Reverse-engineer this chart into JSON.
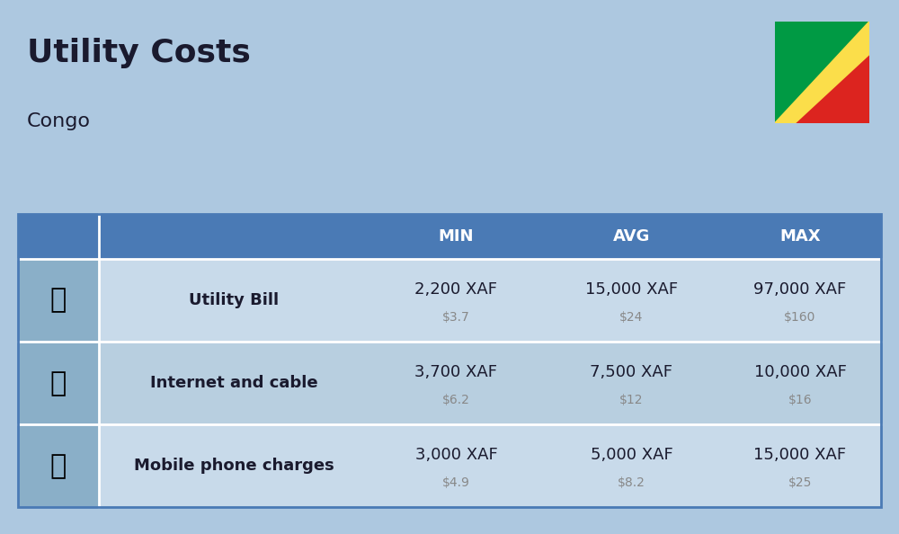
{
  "title": "Utility Costs",
  "subtitle": "Congo",
  "background_color": "#adc8e0",
  "header_bg_color": "#4a7ab5",
  "header_text_color": "#ffffff",
  "row_colors": [
    "#c8daea",
    "#b8cfe0"
  ],
  "icon_col_color": "#8aafc8",
  "rows": [
    {
      "label": "Utility Bill",
      "min_xaf": "2,200 XAF",
      "min_usd": "$3.7",
      "avg_xaf": "15,000 XAF",
      "avg_usd": "$24",
      "max_xaf": "97,000 XAF",
      "max_usd": "$160"
    },
    {
      "label": "Internet and cable",
      "min_xaf": "3,700 XAF",
      "min_usd": "$6.2",
      "avg_xaf": "7,500 XAF",
      "avg_usd": "$12",
      "max_xaf": "10,000 XAF",
      "max_usd": "$16"
    },
    {
      "label": "Mobile phone charges",
      "min_xaf": "3,000 XAF",
      "min_usd": "$4.9",
      "avg_xaf": "5,000 XAF",
      "avg_usd": "$8.2",
      "max_xaf": "15,000 XAF",
      "max_usd": "$25"
    }
  ],
  "xaf_fontsize": 13,
  "usd_fontsize": 10,
  "label_fontsize": 13,
  "header_fontsize": 13,
  "usd_color": "#888888",
  "text_color": "#1a1a2e"
}
